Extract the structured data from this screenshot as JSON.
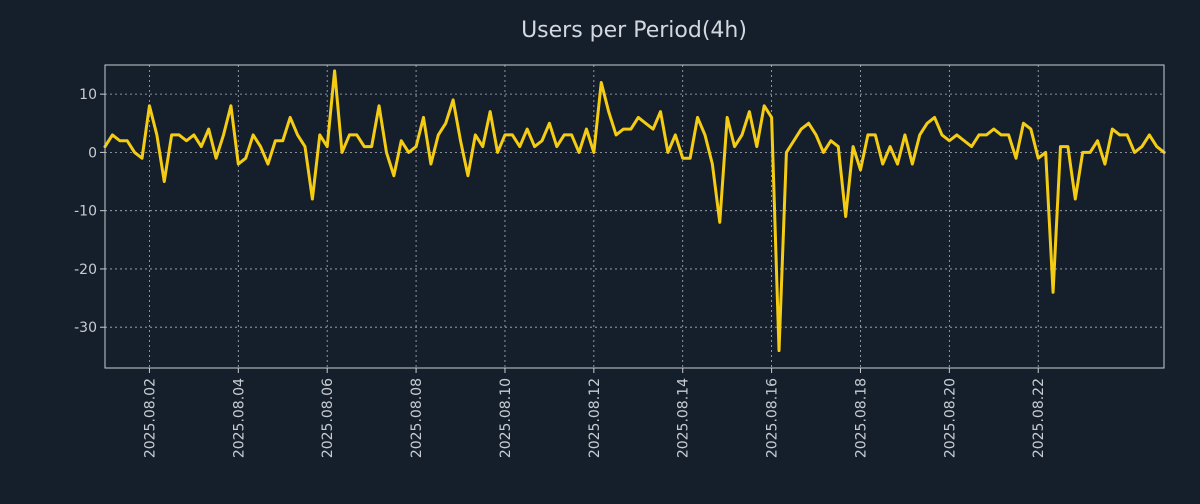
{
  "chart_data": {
    "type": "line",
    "title": "Users per Period(4h)",
    "xlabel": "",
    "ylabel": "",
    "ylim": [
      -37,
      15
    ],
    "grid": true,
    "colors": {
      "background": "#151f2c",
      "line": "#f5cc14",
      "text": "#c8ccd2"
    },
    "x_period_days": [
      0,
      23.83
    ],
    "y_ticks": [
      10,
      0,
      -10,
      -20,
      -30
    ],
    "y_tick_labels": [
      "10",
      "0",
      "-10",
      "-20",
      "-30"
    ],
    "x_ticks": [
      {
        "day": 1,
        "label": "2025.08.02"
      },
      {
        "day": 3,
        "label": "2025.08.04"
      },
      {
        "day": 5,
        "label": "2025.08.06"
      },
      {
        "day": 7,
        "label": "2025.08.08"
      },
      {
        "day": 9,
        "label": "2025.08.10"
      },
      {
        "day": 11,
        "label": "2025.08.12"
      },
      {
        "day": 13,
        "label": "2025.08.14"
      },
      {
        "day": 15,
        "label": "2025.08.16"
      },
      {
        "day": 17,
        "label": "2025.08.18"
      },
      {
        "day": 19,
        "label": "2025.08.20"
      },
      {
        "day": 21,
        "label": "2025.08.22"
      }
    ],
    "series": [
      {
        "name": "Users per Period(4h)",
        "step_days": 0.16667,
        "values": [
          1,
          3,
          2,
          2,
          0,
          -1,
          8,
          3,
          -5,
          3,
          3,
          2,
          3,
          1,
          4,
          -1,
          3,
          8,
          -2,
          -1,
          3,
          1,
          -2,
          2,
          2,
          6,
          3,
          1,
          -8,
          3,
          1,
          14,
          0,
          3,
          3,
          1,
          1,
          8,
          0,
          -4,
          2,
          0,
          1,
          6,
          -2,
          3,
          5,
          9,
          2,
          -4,
          3,
          1,
          7,
          0,
          3,
          3,
          1,
          4,
          1,
          2,
          5,
          1,
          3,
          3,
          0,
          4,
          0,
          12,
          7,
          3,
          4,
          4,
          6,
          5,
          4,
          7,
          0,
          3,
          -1,
          -1,
          6,
          3,
          -2,
          -12,
          6,
          1,
          3,
          7,
          1,
          8,
          6,
          -34,
          0,
          2,
          4,
          5,
          3,
          0,
          2,
          1,
          -11,
          1,
          -3,
          3,
          3,
          -2,
          1,
          -2,
          3,
          -2,
          3,
          5,
          6,
          3,
          2,
          3,
          2,
          1,
          3,
          3,
          4,
          3,
          3,
          -1,
          5,
          4,
          -1,
          0,
          -24,
          1,
          1,
          -8,
          0,
          0,
          2,
          -2,
          4,
          3,
          3,
          0,
          1,
          3,
          1,
          0
        ]
      }
    ]
  }
}
